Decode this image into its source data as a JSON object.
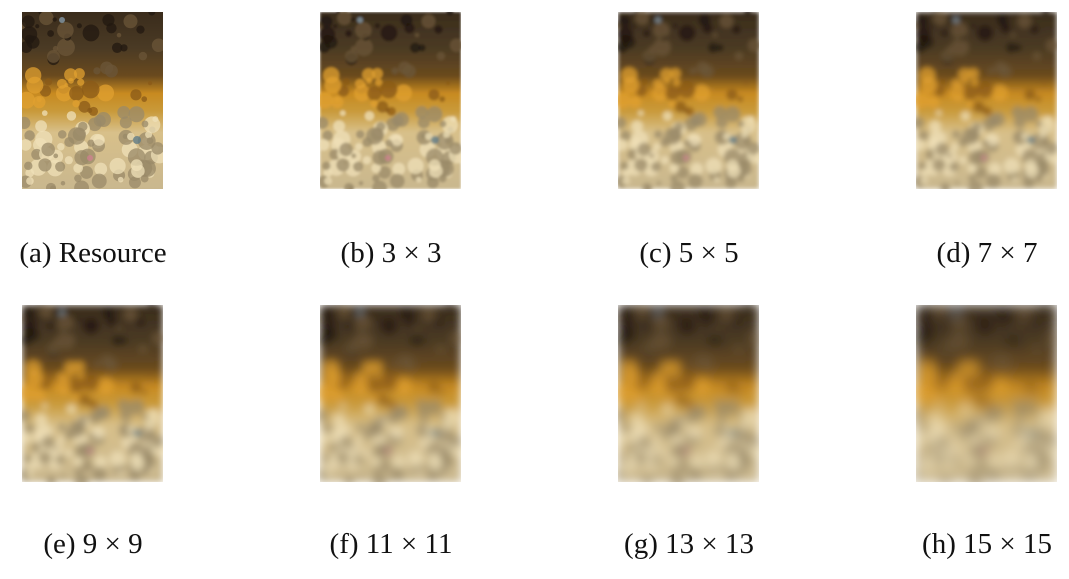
{
  "panels": [
    {
      "caption": "(a) Resource"
    },
    {
      "caption": "(b) 3 × 3"
    },
    {
      "caption": "(c) 5 × 5"
    },
    {
      "caption": "(d) 7 × 7"
    },
    {
      "caption": "(e) 9 × 9"
    },
    {
      "caption": "(f) 11 × 11"
    },
    {
      "caption": "(g) 13 × 13"
    },
    {
      "caption": "(h) 15 × 15"
    }
  ]
}
